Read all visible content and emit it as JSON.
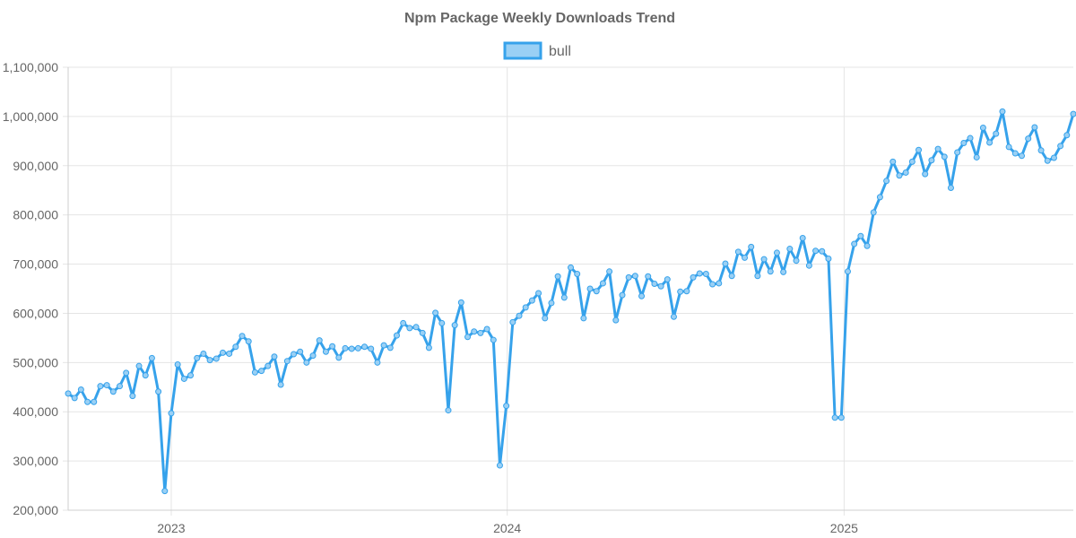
{
  "chart_data": {
    "type": "line",
    "title": "Npm Package Weekly Downloads Trend",
    "xlabel": "",
    "ylabel": "",
    "legend": {
      "position": "top"
    },
    "grid": true,
    "colors": {
      "line": "#36a2eb",
      "fill": "#9ad0f5"
    },
    "x_range": [
      "2022-09-11",
      "2025-08-31"
    ],
    "x_ticks": [
      {
        "date": "2023-01-01",
        "label": "2023"
      },
      {
        "date": "2024-01-01",
        "label": "2024"
      },
      {
        "date": "2025-01-01",
        "label": "2025"
      }
    ],
    "ylim": [
      200000,
      1100000
    ],
    "y_ticks": [
      {
        "value": 200000,
        "label": "200,000"
      },
      {
        "value": 300000,
        "label": "300,000"
      },
      {
        "value": 400000,
        "label": "400,000"
      },
      {
        "value": 500000,
        "label": "500,000"
      },
      {
        "value": 600000,
        "label": "600,000"
      },
      {
        "value": 700000,
        "label": "700,000"
      },
      {
        "value": 800000,
        "label": "800,000"
      },
      {
        "value": 900000,
        "label": "900,000"
      },
      {
        "value": 1000000,
        "label": "1,000,000"
      },
      {
        "value": 1100000,
        "label": "1,100,000"
      }
    ],
    "series": [
      {
        "name": "bull",
        "points": [
          [
            "2022-09-11",
            437000
          ],
          [
            "2022-09-18",
            428000
          ],
          [
            "2022-09-25",
            445000
          ],
          [
            "2022-10-02",
            420000
          ],
          [
            "2022-10-09",
            420000
          ],
          [
            "2022-10-16",
            452000
          ],
          [
            "2022-10-23",
            454000
          ],
          [
            "2022-10-30",
            441000
          ],
          [
            "2022-11-06",
            452000
          ],
          [
            "2022-11-13",
            479000
          ],
          [
            "2022-11-20",
            432000
          ],
          [
            "2022-11-27",
            493000
          ],
          [
            "2022-12-04",
            474000
          ],
          [
            "2022-12-11",
            509000
          ],
          [
            "2022-12-18",
            441000
          ],
          [
            "2022-12-25",
            239000
          ],
          [
            "2023-01-01",
            397000
          ],
          [
            "2023-01-08",
            496000
          ],
          [
            "2023-01-15",
            467000
          ],
          [
            "2023-01-22",
            474000
          ],
          [
            "2023-01-29",
            509000
          ],
          [
            "2023-02-05",
            518000
          ],
          [
            "2023-02-12",
            505000
          ],
          [
            "2023-02-19",
            508000
          ],
          [
            "2023-02-26",
            520000
          ],
          [
            "2023-03-05",
            518000
          ],
          [
            "2023-03-12",
            532000
          ],
          [
            "2023-03-19",
            554000
          ],
          [
            "2023-03-26",
            543000
          ],
          [
            "2023-04-02",
            480000
          ],
          [
            "2023-04-09",
            483000
          ],
          [
            "2023-04-16",
            493000
          ],
          [
            "2023-04-23",
            512000
          ],
          [
            "2023-04-30",
            455000
          ],
          [
            "2023-05-07",
            503000
          ],
          [
            "2023-05-14",
            517000
          ],
          [
            "2023-05-21",
            522000
          ],
          [
            "2023-05-28",
            500000
          ],
          [
            "2023-06-04",
            514000
          ],
          [
            "2023-06-11",
            545000
          ],
          [
            "2023-06-18",
            522000
          ],
          [
            "2023-06-25",
            533000
          ],
          [
            "2023-07-02",
            510000
          ],
          [
            "2023-07-09",
            529000
          ],
          [
            "2023-07-16",
            528000
          ],
          [
            "2023-07-23",
            529000
          ],
          [
            "2023-07-30",
            532000
          ],
          [
            "2023-08-06",
            528000
          ],
          [
            "2023-08-13",
            500000
          ],
          [
            "2023-08-20",
            535000
          ],
          [
            "2023-08-27",
            530000
          ],
          [
            "2023-09-03",
            555000
          ],
          [
            "2023-09-10",
            580000
          ],
          [
            "2023-09-17",
            570000
          ],
          [
            "2023-09-24",
            572000
          ],
          [
            "2023-10-01",
            560000
          ],
          [
            "2023-10-08",
            530000
          ],
          [
            "2023-10-15",
            601000
          ],
          [
            "2023-10-22",
            580000
          ],
          [
            "2023-10-29",
            403000
          ],
          [
            "2023-11-05",
            576000
          ],
          [
            "2023-11-12",
            622000
          ],
          [
            "2023-11-19",
            552000
          ],
          [
            "2023-11-26",
            563000
          ],
          [
            "2023-12-03",
            560000
          ],
          [
            "2023-12-10",
            568000
          ],
          [
            "2023-12-17",
            546000
          ],
          [
            "2023-12-24",
            291000
          ],
          [
            "2023-12-31",
            412000
          ],
          [
            "2024-01-07",
            582000
          ],
          [
            "2024-01-14",
            595000
          ],
          [
            "2024-01-21",
            612000
          ],
          [
            "2024-01-28",
            626000
          ],
          [
            "2024-02-04",
            641000
          ],
          [
            "2024-02-11",
            590000
          ],
          [
            "2024-02-18",
            621000
          ],
          [
            "2024-02-25",
            675000
          ],
          [
            "2024-03-03",
            632000
          ],
          [
            "2024-03-10",
            693000
          ],
          [
            "2024-03-17",
            680000
          ],
          [
            "2024-03-24",
            590000
          ],
          [
            "2024-03-31",
            650000
          ],
          [
            "2024-04-07",
            645000
          ],
          [
            "2024-04-14",
            661000
          ],
          [
            "2024-04-21",
            685000
          ],
          [
            "2024-04-28",
            586000
          ],
          [
            "2024-05-05",
            637000
          ],
          [
            "2024-05-12",
            673000
          ],
          [
            "2024-05-19",
            676000
          ],
          [
            "2024-05-26",
            635000
          ],
          [
            "2024-06-02",
            675000
          ],
          [
            "2024-06-09",
            660000
          ],
          [
            "2024-06-16",
            655000
          ],
          [
            "2024-06-23",
            669000
          ],
          [
            "2024-06-30",
            593000
          ],
          [
            "2024-07-07",
            644000
          ],
          [
            "2024-07-14",
            645000
          ],
          [
            "2024-07-21",
            673000
          ],
          [
            "2024-07-28",
            681000
          ],
          [
            "2024-08-04",
            680000
          ],
          [
            "2024-08-11",
            659000
          ],
          [
            "2024-08-18",
            661000
          ],
          [
            "2024-08-25",
            701000
          ],
          [
            "2024-09-01",
            676000
          ],
          [
            "2024-09-08",
            725000
          ],
          [
            "2024-09-15",
            713000
          ],
          [
            "2024-09-22",
            735000
          ],
          [
            "2024-09-29",
            676000
          ],
          [
            "2024-10-06",
            710000
          ],
          [
            "2024-10-13",
            685000
          ],
          [
            "2024-10-20",
            723000
          ],
          [
            "2024-10-27",
            684000
          ],
          [
            "2024-11-03",
            731000
          ],
          [
            "2024-11-10",
            707000
          ],
          [
            "2024-11-17",
            753000
          ],
          [
            "2024-11-24",
            697000
          ],
          [
            "2024-12-01",
            727000
          ],
          [
            "2024-12-08",
            726000
          ],
          [
            "2024-12-15",
            711000
          ],
          [
            "2024-12-22",
            388000
          ],
          [
            "2024-12-29",
            388000
          ],
          [
            "2025-01-05",
            685000
          ],
          [
            "2025-01-12",
            741000
          ],
          [
            "2025-01-19",
            757000
          ],
          [
            "2025-01-26",
            737000
          ],
          [
            "2025-02-02",
            805000
          ],
          [
            "2025-02-09",
            836000
          ],
          [
            "2025-02-16",
            869000
          ],
          [
            "2025-02-23",
            908000
          ],
          [
            "2025-03-02",
            880000
          ],
          [
            "2025-03-09",
            886000
          ],
          [
            "2025-03-16",
            908000
          ],
          [
            "2025-03-23",
            932000
          ],
          [
            "2025-03-30",
            883000
          ],
          [
            "2025-04-06",
            911000
          ],
          [
            "2025-04-13",
            934000
          ],
          [
            "2025-04-20",
            918000
          ],
          [
            "2025-04-27",
            855000
          ],
          [
            "2025-05-04",
            927000
          ],
          [
            "2025-05-11",
            946000
          ],
          [
            "2025-05-18",
            956000
          ],
          [
            "2025-05-25",
            917000
          ],
          [
            "2025-06-01",
            977000
          ],
          [
            "2025-06-08",
            947000
          ],
          [
            "2025-06-15",
            965000
          ],
          [
            "2025-06-22",
            1010000
          ],
          [
            "2025-06-29",
            938000
          ],
          [
            "2025-07-06",
            925000
          ],
          [
            "2025-07-13",
            920000
          ],
          [
            "2025-07-20",
            955000
          ],
          [
            "2025-07-27",
            978000
          ],
          [
            "2025-08-03",
            931000
          ],
          [
            "2025-08-10",
            910000
          ],
          [
            "2025-08-17",
            916000
          ],
          [
            "2025-08-24",
            940000
          ],
          [
            "2025-08-31",
            962000
          ],
          [
            "2025-09-07",
            1005000
          ]
        ]
      }
    ]
  }
}
